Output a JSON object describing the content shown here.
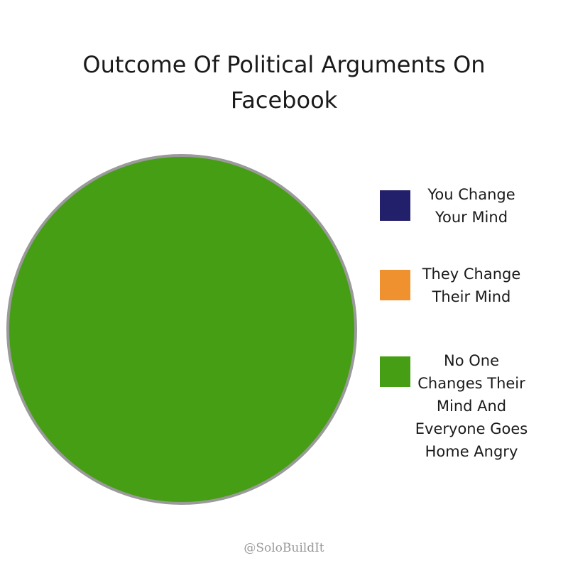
{
  "chart_data": {
    "type": "pie",
    "title": "Outcome Of Political Arguments On Facebook",
    "categories": [
      "You Change Your Mind",
      "They Change Their Mind",
      "No One Changes Their Mind And Everyone Goes Home Angry"
    ],
    "values": [
      0,
      0,
      100
    ],
    "colors": [
      "#23206b",
      "#f0912f",
      "#459e13"
    ],
    "legend": "right",
    "source": "@SoloBuildIt"
  }
}
